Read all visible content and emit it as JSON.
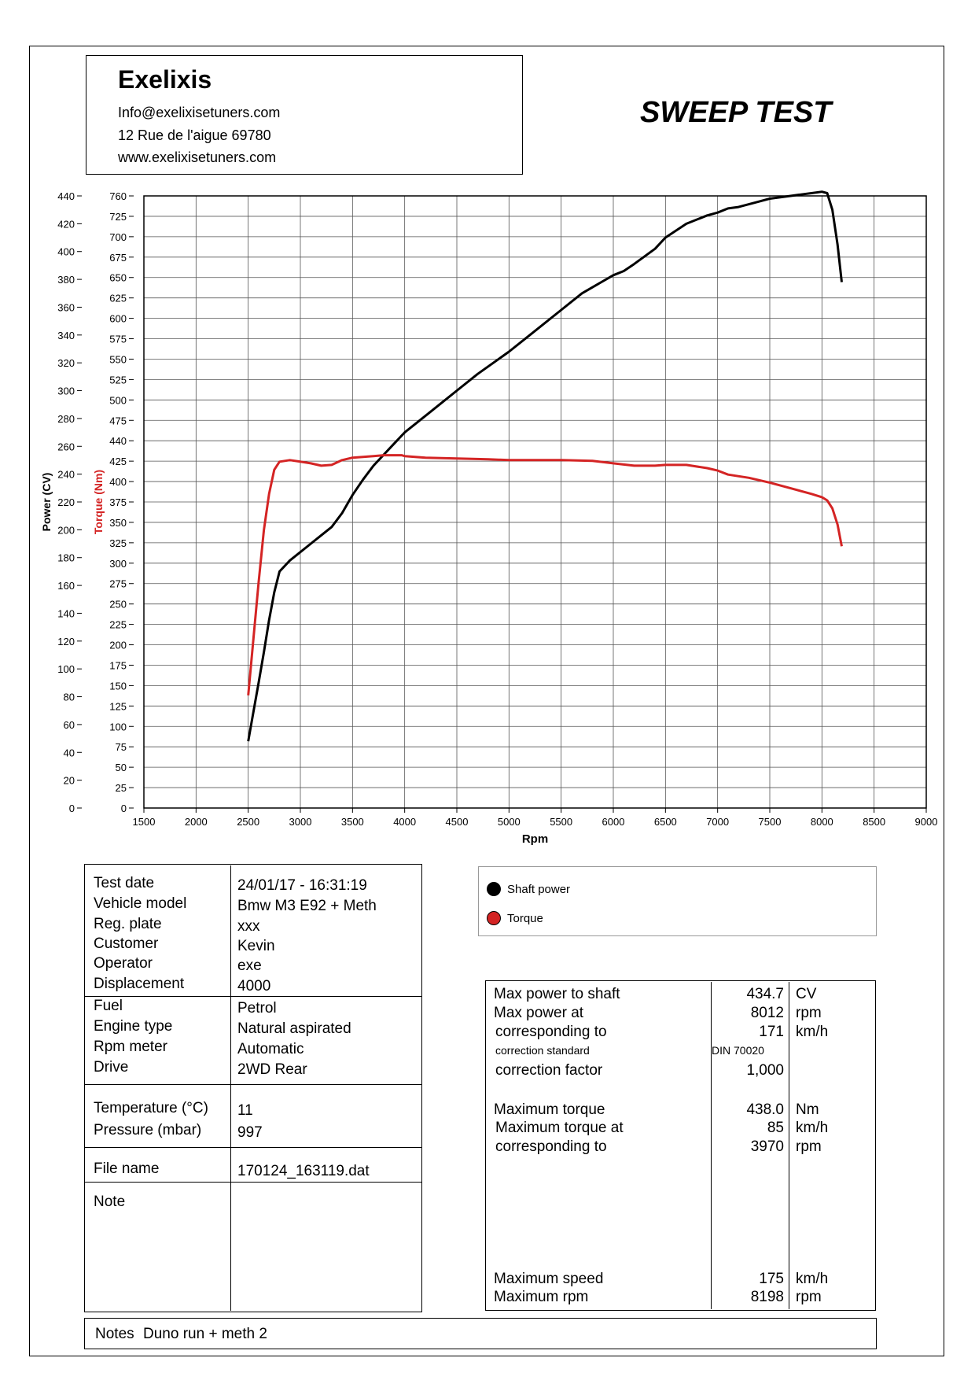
{
  "header": {
    "company": "Exelixis",
    "email": "Info@exelixisetuners.com",
    "address": "12 Rue de l'aigue 69780",
    "website": "www.exelixisetuners.com",
    "report_title": "SWEEP TEST"
  },
  "chart_data": {
    "type": "line",
    "xlabel": "Rpm",
    "ylabel": "Power (CV)",
    "y2label": "Torque (Nm)",
    "xlim": [
      1500,
      9000
    ],
    "ylim": [
      0,
      440
    ],
    "y2lim": [
      0,
      760
    ],
    "x_ticks": [
      1500,
      2000,
      2500,
      3000,
      3500,
      4000,
      4500,
      5000,
      5500,
      6000,
      6500,
      7000,
      7500,
      8000,
      8500,
      9000
    ],
    "y_ticks": [
      0,
      20,
      40,
      60,
      80,
      100,
      120,
      140,
      160,
      180,
      200,
      220,
      240,
      260,
      280,
      300,
      320,
      340,
      360,
      380,
      400,
      420,
      440
    ],
    "y2_ticks": [
      0,
      25,
      50,
      75,
      100,
      125,
      150,
      175,
      200,
      225,
      250,
      275,
      300,
      325,
      350,
      375,
      400,
      425,
      440,
      475,
      500,
      525,
      550,
      575,
      600,
      625,
      650,
      675,
      700,
      725,
      760
    ],
    "grid": true,
    "series": [
      {
        "name": "Shaft power",
        "color": "#000000",
        "axis": "left",
        "x": [
          2500,
          2540,
          2600,
          2650,
          2700,
          2750,
          2800,
          2900,
          3000,
          3100,
          3200,
          3300,
          3400,
          3500,
          3600,
          3700,
          3800,
          3900,
          4000,
          4200,
          4500,
          4700,
          5000,
          5200,
          5500,
          5700,
          6000,
          6100,
          6200,
          6400,
          6500,
          6700,
          6900,
          7000,
          7100,
          7200,
          7400,
          7500,
          7600,
          7700,
          7800,
          7900,
          8000,
          8050,
          8100,
          8150,
          8190
        ],
        "y": [
          48,
          65,
          90,
          112,
          135,
          155,
          170,
          178,
          184,
          190,
          196,
          202,
          212,
          225,
          236,
          246,
          254,
          262,
          270,
          282,
          300,
          312,
          328,
          340,
          358,
          370,
          383,
          386,
          391,
          402,
          410,
          420,
          426,
          428,
          431,
          432,
          436,
          438,
          439,
          440,
          441,
          442,
          443,
          442,
          430,
          405,
          378
        ],
        "marker": "shaft-power-marker-icon"
      },
      {
        "name": "Torque",
        "color": "#d42424",
        "axis": "right",
        "x": [
          2500,
          2550,
          2600,
          2650,
          2700,
          2750,
          2800,
          2900,
          3000,
          3100,
          3200,
          3300,
          3400,
          3500,
          3600,
          3700,
          3800,
          3900,
          3970,
          4000,
          4200,
          4500,
          4800,
          5000,
          5200,
          5500,
          5800,
          6000,
          6200,
          6400,
          6500,
          6700,
          6900,
          7000,
          7100,
          7300,
          7500,
          7700,
          7900,
          8000,
          8050,
          8100,
          8150,
          8190
        ],
        "y": [
          140,
          210,
          280,
          345,
          390,
          420,
          430,
          432,
          430,
          428,
          425,
          426,
          432,
          435,
          436,
          437,
          438,
          438,
          438,
          437,
          435,
          434,
          433,
          432,
          432,
          432,
          431,
          428,
          425,
          425,
          426,
          426,
          422,
          419,
          414,
          410,
          404,
          397,
          390,
          386,
          382,
          372,
          352,
          325
        ],
        "marker": "torque-marker-icon"
      }
    ]
  },
  "info_table": {
    "rows": [
      {
        "label": "Test date",
        "value": "24/01/17 - 16:31:19"
      },
      {
        "label": "Vehicle model",
        "value": "Bmw M3 E92 + Meth"
      },
      {
        "label": "Reg. plate",
        "value": "xxx"
      },
      {
        "label": "Customer",
        "value": "Kevin"
      },
      {
        "label": "Operator",
        "value": "exe"
      },
      {
        "label": "Displacement",
        "value": "4000"
      },
      {
        "label": "Fuel",
        "value": "Petrol"
      },
      {
        "label": "Engine type",
        "value": "Natural aspirated"
      },
      {
        "label": "Rpm meter",
        "value": "Automatic"
      },
      {
        "label": "Drive",
        "value": "2WD Rear"
      },
      {
        "label": "Temperature (°C)",
        "value": "11"
      },
      {
        "label": "Pressure (mbar)",
        "value": "997"
      },
      {
        "label": "File name",
        "value": "170124_163119.dat"
      },
      {
        "label": "Note",
        "value": ""
      }
    ]
  },
  "legend": {
    "items": [
      {
        "label": "Shaft power",
        "color": "#000000"
      },
      {
        "label": "Torque",
        "color": "#d42424"
      }
    ]
  },
  "results": {
    "rows": [
      {
        "label": "Max power to shaft",
        "value": "434.7",
        "unit": "CV"
      },
      {
        "label": "Max power at",
        "value": "8012",
        "unit": "rpm"
      },
      {
        "label": "corresponding to",
        "value": "171",
        "unit": "km/h"
      },
      {
        "label": "correction standard",
        "value": "DIN 70020",
        "unit": ""
      },
      {
        "label": "correction factor",
        "value": "1,000",
        "unit": ""
      },
      {
        "label": "Maximum torque",
        "value": "438.0",
        "unit": "Nm"
      },
      {
        "label": "Maximum torque at",
        "value": "85",
        "unit": "km/h"
      },
      {
        "label": "corresponding to",
        "value": "3970",
        "unit": "rpm"
      },
      {
        "label": "Maximum speed",
        "value": "175",
        "unit": "km/h"
      },
      {
        "label": "Maximum rpm",
        "value": "8198",
        "unit": "rpm"
      }
    ]
  },
  "notes": {
    "label": "Notes",
    "value": "Duno run + meth 2"
  }
}
